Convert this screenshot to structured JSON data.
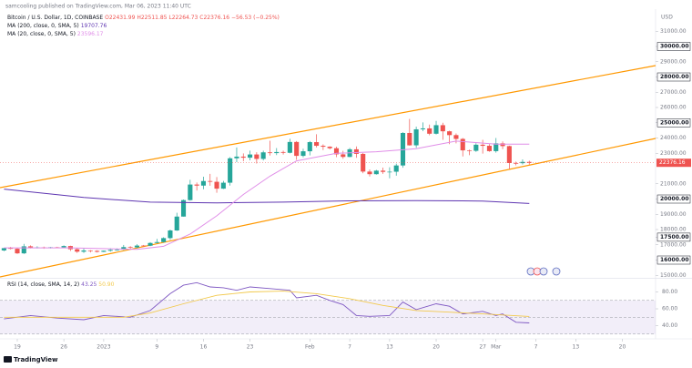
{
  "header": {
    "author": "samcooling published on TradingView.com, Mar 06, 2023 11:40 UTC",
    "brand": "TradingView"
  },
  "chart_data": {
    "type": "candlestick",
    "title": "Bitcoin / U.S. Dollar, 1D, COINBASE",
    "ohlc_text": "O22431.99 H22511.85 L22264.73 C22376.16 −56.53 (−0.25%)",
    "currency": "USD",
    "xlim": [
      -0.6,
      98
    ],
    "xticks": [
      {
        "value": 2,
        "label": "19"
      },
      {
        "value": 9,
        "label": "26"
      },
      {
        "value": 15,
        "label": "2023"
      },
      {
        "value": 23,
        "label": "9"
      },
      {
        "value": 30,
        "label": "16"
      },
      {
        "value": 37,
        "label": "23"
      },
      {
        "value": 46,
        "label": "Feb"
      },
      {
        "value": 52,
        "label": "7"
      },
      {
        "value": 58,
        "label": "13"
      },
      {
        "value": 65,
        "label": "20"
      },
      {
        "value": 72,
        "label": "27"
      },
      {
        "value": 74,
        "label": "Mar"
      },
      {
        "value": 80,
        "label": "7"
      },
      {
        "value": 86,
        "label": "13"
      },
      {
        "value": 93,
        "label": "20"
      }
    ],
    "ylim": [
      14836,
      32448
    ],
    "yticks": [
      {
        "value": 31000,
        "label": "31000.00"
      },
      {
        "value": 30000,
        "label": "30000.00",
        "boxed": true
      },
      {
        "value": 29000,
        "label": "29000.00"
      },
      {
        "value": 28000,
        "label": "28000.00",
        "boxed": true
      },
      {
        "value": 27000,
        "label": "27000.00"
      },
      {
        "value": 26000,
        "label": "26000.00"
      },
      {
        "value": 25000,
        "label": "25000.00",
        "boxed": true
      },
      {
        "value": 24000,
        "label": "24000.00"
      },
      {
        "value": 23000,
        "label": "23000.00"
      },
      {
        "value": 21000,
        "label": "21000.00"
      },
      {
        "value": 20000,
        "label": "20000.00",
        "boxed": true
      },
      {
        "value": 19000,
        "label": "19000.00"
      },
      {
        "value": 18000,
        "label": "18000.00"
      },
      {
        "value": 17500,
        "label": "17500.00",
        "boxed": true
      },
      {
        "value": 17000,
        "label": "17000.00"
      },
      {
        "value": 16000,
        "label": "16000.00",
        "boxed": true
      },
      {
        "value": 15000,
        "label": "15000.00"
      }
    ],
    "up_color": "#26a69a",
    "down_color": "#ef5350",
    "open": [
      16630,
      16780,
      16740,
      16440,
      16900,
      16820,
      16830,
      16780,
      16840,
      16830,
      16920,
      16710,
      16550,
      16630,
      16600,
      16540,
      16610,
      16670,
      16680,
      16850,
      16830,
      16950,
      16940,
      17120,
      17180,
      17440,
      17940,
      18850,
      19930,
      20950,
      20880,
      21180,
      21130,
      20680,
      21070,
      22670,
      22780,
      22710,
      22920,
      22630,
      23060,
      23010,
      23080,
      23030,
      23740,
      22830,
      23130,
      23730,
      23490,
      23430,
      23330,
      22930,
      22760,
      23260,
      22960,
      21800,
      21630,
      21860,
      21780,
      21790,
      22200,
      24330,
      23520,
      24570,
      24630,
      24280,
      24840,
      24440,
      24190,
      23940,
      23190,
      23160,
      23560,
      23490,
      23140,
      23650,
      23470,
      22360,
      22350,
      22431.99
    ],
    "high": [
      16800,
      16860,
      16800,
      17060,
      16960,
      16900,
      16880,
      16860,
      16870,
      16960,
      16940,
      16780,
      16780,
      16650,
      16640,
      16630,
      16780,
      16770,
      16990,
      16910,
      17040,
      16990,
      17170,
      17390,
      17490,
      18000,
      19100,
      19970,
      21260,
      21080,
      21460,
      21650,
      21440,
      21190,
      22750,
      23380,
      22990,
      23170,
      23070,
      23170,
      23820,
      23340,
      23170,
      23950,
      23800,
      23300,
      23800,
      24250,
      23580,
      23460,
      23430,
      23160,
      23350,
      23450,
      23020,
      21940,
      21910,
      22060,
      22080,
      22320,
      24380,
      25250,
      24750,
      25020,
      24880,
      25120,
      25000,
      24480,
      24300,
      24000,
      23240,
      23660,
      23880,
      23600,
      24000,
      23780,
      23500,
      22450,
      22600,
      22511.85
    ],
    "low": [
      16580,
      16700,
      16400,
      16400,
      16760,
      16760,
      16740,
      16760,
      16800,
      16800,
      16600,
      16470,
      16460,
      16500,
      16490,
      16520,
      16550,
      16620,
      16660,
      16750,
      16780,
      16900,
      16910,
      17100,
      17140,
      17320,
      17910,
      18850,
      19890,
      20560,
      20640,
      20870,
      20410,
      20660,
      20880,
      22420,
      22480,
      22540,
      22330,
      22530,
      22850,
      22880,
      22920,
      22990,
      22570,
      22730,
      22860,
      23380,
      23210,
      23250,
      22750,
      22640,
      22740,
      22700,
      21690,
      21480,
      21600,
      21650,
      21360,
      21530,
      22050,
      23500,
      23350,
      24450,
      24180,
      24230,
      23880,
      23600,
      23650,
      22790,
      22870,
      23090,
      22980,
      23100,
      23040,
      23270,
      21980,
      22210,
      22260,
      22264.73
    ],
    "close": [
      16780,
      16740,
      16440,
      16900,
      16820,
      16830,
      16780,
      16840,
      16830,
      16920,
      16710,
      16550,
      16630,
      16600,
      16540,
      16610,
      16670,
      16680,
      16850,
      16830,
      16950,
      16940,
      17120,
      17180,
      17440,
      17940,
      18850,
      19930,
      20950,
      20880,
      21180,
      21130,
      20680,
      21070,
      22670,
      22780,
      22710,
      22920,
      22630,
      23060,
      23010,
      23080,
      23030,
      23740,
      22830,
      23130,
      23730,
      23490,
      23430,
      23330,
      22930,
      22760,
      23260,
      22960,
      21800,
      21630,
      21860,
      21780,
      21790,
      22200,
      24330,
      23520,
      24570,
      24630,
      24280,
      24840,
      24440,
      24190,
      23940,
      23190,
      23160,
      23560,
      23490,
      23140,
      23650,
      23470,
      22360,
      22350,
      22431.99,
      22376.16
    ],
    "series": [
      {
        "name": "MA (200, close, 0, SMA, 5)",
        "color": "#5e35b1",
        "x": [
          0,
          12,
          22,
          32,
          42,
          52,
          62,
          72,
          79
        ],
        "values": [
          20650,
          20100,
          19800,
          19750,
          19800,
          19880,
          19900,
          19870,
          19707.76
        ]
      },
      {
        "name": "MA (20, close, 0, SMA, 5)",
        "color": "#e08ee8",
        "x": [
          0,
          10,
          20,
          24,
          28,
          32,
          36,
          40,
          44,
          50,
          56,
          62,
          68,
          74,
          79
        ],
        "values": [
          16800,
          16800,
          16700,
          16900,
          17700,
          18900,
          20300,
          21500,
          22500,
          23000,
          23100,
          23300,
          23800,
          23600,
          23596.17
        ]
      }
    ],
    "rsi": {
      "name": "RSI (14, close, SMA, 14, 2)",
      "ylim": [
        26.5,
        95.7
      ],
      "yticks": [
        {
          "value": 80,
          "label": "80.00"
        },
        {
          "value": 60,
          "label": "60.00"
        },
        {
          "value": 40,
          "label": "40.00"
        }
      ],
      "band": [
        30,
        70
      ],
      "levels": [
        30,
        50,
        70
      ],
      "band_color": "#7e57c2",
      "series": [
        {
          "color": "#7e57c2",
          "x": [
            0,
            4,
            8,
            12,
            15,
            19,
            22,
            25,
            27,
            29,
            31,
            33,
            35,
            37,
            40,
            43,
            44,
            47,
            49,
            51,
            53,
            55,
            58,
            60,
            62,
            65,
            67,
            69,
            72,
            74,
            75,
            77,
            79
          ],
          "values": [
            48,
            52,
            49,
            47,
            52,
            50,
            58,
            78,
            88,
            91,
            86,
            85,
            82,
            86,
            84,
            82,
            73,
            76,
            70,
            65,
            52,
            51,
            52,
            68,
            59,
            66,
            63,
            54,
            57,
            52,
            54,
            44,
            43.25
          ],
          "legend_value": "43.25"
        },
        {
          "color": "#f2c94c",
          "x": [
            0,
            18,
            22,
            27,
            32,
            37,
            42,
            47,
            52,
            57,
            62,
            67,
            72,
            79
          ],
          "values": [
            50,
            50,
            55,
            66,
            76,
            80,
            81,
            78,
            72,
            64,
            58,
            56,
            54,
            50.9
          ],
          "legend_value": "50.90"
        }
      ]
    }
  }
}
